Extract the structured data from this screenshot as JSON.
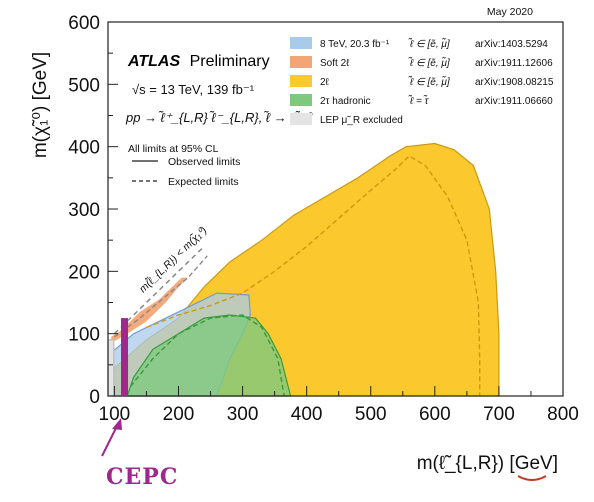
{
  "chart_data": {
    "type": "area",
    "corner_note": "May 2020",
    "xlabel": "m(ℓ̃_{L,R}) [GeV]",
    "ylabel": "m(χ̃₁⁰) [GeV]",
    "xlim": [
      90,
      800
    ],
    "ylim": [
      0,
      600
    ],
    "x_ticks": [
      "100",
      "200",
      "300",
      "400",
      "500",
      "600",
      "700",
      "800"
    ],
    "y_ticks": [
      "0",
      "100",
      "200",
      "300",
      "400",
      "500",
      "600"
    ],
    "experiment": "ATLAS",
    "experiment_tag": "Preliminary",
    "energy_lumi": "√s = 13 TeV, 139 fb⁻¹",
    "process": "pp → ℓ̃⁺_{L,R} ℓ̃⁻_{L,R}, ℓ̃ → ℓχ̃₁⁰",
    "cl_note": "All limits at 95% CL",
    "line_legend": [
      {
        "label": "Observed limits",
        "style": "solid"
      },
      {
        "label": "Expected limits",
        "style": "dashed"
      }
    ],
    "kinematic_label": "m(ℓ̃_{L,R}) < m(χ̃₁⁰)",
    "legend": [
      {
        "label": "8 TeV, 20.3 fb⁻¹",
        "flavour": "ℓ̃ ∈ [ẽ, μ̃]",
        "ref": "arXiv:1403.5294",
        "color": "#a9cbea"
      },
      {
        "label": "Soft 2ℓ",
        "flavour": "ℓ̃ ∈ [ẽ, μ̃]",
        "ref": "arXiv:1911.12606",
        "color": "#f4a575"
      },
      {
        "label": "2ℓ",
        "flavour": "ℓ̃ ∈ [ẽ, μ̃]",
        "ref": "arXiv:1908.08215",
        "color": "#fbc82e"
      },
      {
        "label": "2τ hadronic",
        "flavour": "ℓ̃ = τ̃",
        "ref": "arXiv:1911.06660",
        "color": "#7fc97f"
      },
      {
        "label": "LEP μ̃_R excluded",
        "flavour": "",
        "ref": "",
        "color": "#e4e4e4"
      }
    ],
    "series": [
      {
        "name": "2ℓ",
        "observed": [
          [
            96,
            0
          ],
          [
            100,
            45
          ],
          [
            150,
            90
          ],
          [
            200,
            125
          ],
          [
            240,
            175
          ],
          [
            280,
            215
          ],
          [
            330,
            250
          ],
          [
            380,
            290
          ],
          [
            430,
            320
          ],
          [
            480,
            350
          ],
          [
            530,
            385
          ],
          [
            555,
            400
          ],
          [
            600,
            405
          ],
          [
            630,
            395
          ],
          [
            660,
            370
          ],
          [
            685,
            300
          ],
          [
            695,
            200
          ],
          [
            700,
            100
          ],
          [
            700,
            0
          ]
        ],
        "expected": [
          [
            150,
            110
          ],
          [
            200,
            130
          ],
          [
            250,
            145
          ],
          [
            300,
            165
          ],
          [
            350,
            200
          ],
          [
            400,
            240
          ],
          [
            450,
            285
          ],
          [
            500,
            330
          ],
          [
            540,
            365
          ],
          [
            560,
            385
          ],
          [
            585,
            370
          ],
          [
            620,
            320
          ],
          [
            650,
            250
          ],
          [
            668,
            150
          ],
          [
            670,
            60
          ],
          [
            670,
            0
          ]
        ]
      },
      {
        "name": "Soft 2ℓ",
        "observed": [
          [
            95,
            85
          ],
          [
            120,
            100
          ],
          [
            150,
            120
          ],
          [
            180,
            150
          ],
          [
            200,
            175
          ],
          [
            215,
            190
          ],
          [
            205,
            190
          ],
          [
            170,
            155
          ],
          [
            140,
            135
          ],
          [
            110,
            105
          ],
          [
            95,
            95
          ]
        ],
        "expected": [
          [
            100,
            95
          ],
          [
            140,
            125
          ],
          [
            180,
            160
          ],
          [
            215,
            190
          ],
          [
            245,
            225
          ]
        ]
      },
      {
        "name": "8 TeV, 20.3 fb⁻¹",
        "observed": [
          [
            96,
            0
          ],
          [
            96,
            70
          ],
          [
            130,
            100
          ],
          [
            200,
            135
          ],
          [
            260,
            165
          ],
          [
            310,
            162
          ],
          [
            312,
            130
          ],
          [
            300,
            100
          ],
          [
            280,
            60
          ],
          [
            260,
            0
          ]
        ]
      },
      {
        "name": "2τ hadronic",
        "observed": [
          [
            120,
            0
          ],
          [
            130,
            30
          ],
          [
            160,
            75
          ],
          [
            200,
            100
          ],
          [
            240,
            125
          ],
          [
            280,
            130
          ],
          [
            320,
            125
          ],
          [
            340,
            100
          ],
          [
            360,
            60
          ],
          [
            375,
            0
          ]
        ],
        "expected": [
          [
            125,
            15
          ],
          [
            160,
            60
          ],
          [
            200,
            100
          ],
          [
            250,
            125
          ],
          [
            300,
            130
          ],
          [
            330,
            110
          ],
          [
            355,
            60
          ],
          [
            365,
            0
          ]
        ]
      },
      {
        "name": "LEP μ̃_R excluded",
        "observed": [
          [
            90,
            0
          ],
          [
            90,
            90
          ],
          [
            99,
            90
          ],
          [
            99,
            0
          ]
        ]
      }
    ],
    "annotations": [
      {
        "label": "CEPC",
        "x": 115,
        "color": "#a0278c"
      }
    ]
  }
}
